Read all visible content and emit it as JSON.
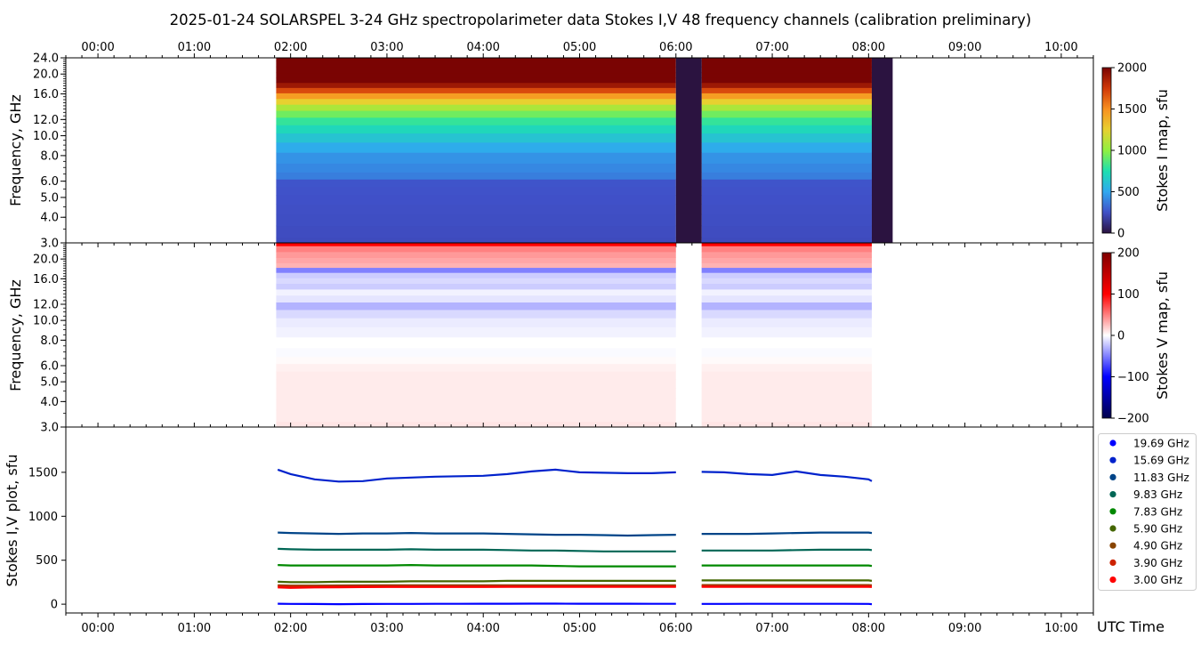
{
  "title": "2025-01-24  SOLARSPEL  3-24 GHz spectropolarimeter data   Stokes I,V   48 frequency channels   (calibration preliminary)",
  "chart_data": [
    {
      "type": "heatmap",
      "ylabel": "Frequency, GHz",
      "yscale": "log",
      "ylim": [
        3.0,
        24.0
      ],
      "ytick_labels": [
        "3.0",
        "4.0",
        "5.0",
        "6.0",
        "8.0",
        "10.0",
        "12.0",
        "16.0",
        "20.0",
        "24.0"
      ],
      "xlim": [
        "-00:20",
        "10:20"
      ],
      "xtick_labels": [
        "00:00",
        "01:00",
        "02:00",
        "03:00",
        "04:00",
        "05:00",
        "06:00",
        "07:00",
        "08:00",
        "09:00",
        "10:00"
      ],
      "colorbar": {
        "label": "Stokes I map, sfu",
        "range": [
          0,
          2000
        ],
        "tick_labels": [
          "0",
          "500",
          "1000",
          "1500",
          "2000"
        ],
        "colormap": [
          "#2b1340",
          "#4050c8",
          "#30a8f0",
          "#1de0b0",
          "#90f040",
          "#e8d030",
          "#f89020",
          "#d03808",
          "#7a0403"
        ]
      },
      "observation_segments": [
        [
          "01:51",
          "06:00"
        ],
        [
          "06:16",
          "08:02"
        ]
      ],
      "zero_signal_segments": [
        [
          "06:00",
          "06:16"
        ],
        [
          "08:02",
          "08:15"
        ]
      ],
      "channels_ghz": [
        3.0,
        3.4,
        3.9,
        4.4,
        4.9,
        5.4,
        5.9,
        6.4,
        6.9,
        7.83,
        8.8,
        9.83,
        10.8,
        11.83,
        12.8,
        13.8,
        14.7,
        15.69,
        16.7,
        17.7,
        18.7,
        19.69,
        21.0,
        22.5,
        24.0
      ],
      "values": [
        230,
        235,
        240,
        245,
        250,
        255,
        260,
        380,
        410,
        440,
        520,
        620,
        710,
        800,
        930,
        1080,
        1250,
        1450,
        1700,
        1900,
        2100,
        2300,
        2400,
        2500,
        2600
      ]
    },
    {
      "type": "heatmap",
      "ylabel": "Frequency, GHz",
      "yscale": "log",
      "ylim": [
        3.0,
        24.0
      ],
      "ytick_labels": [
        "3.0",
        "4.0",
        "5.0",
        "6.0",
        "8.0",
        "10.0",
        "12.0",
        "16.0",
        "20.0"
      ],
      "colorbar": {
        "label": "Stokes V map, sfu",
        "range": [
          -200,
          200
        ],
        "tick_labels": [
          "−200",
          "−100",
          "0",
          "100",
          "200"
        ],
        "colormap": [
          "#00004c",
          "#0000ff",
          "#ffffff",
          "#ff0000",
          "#800000"
        ]
      },
      "observation_segments": [
        [
          "01:51",
          "06:00"
        ],
        [
          "06:16",
          "08:02"
        ]
      ],
      "channels_ghz": [
        3.0,
        3.4,
        3.9,
        4.4,
        4.9,
        5.4,
        5.9,
        6.4,
        6.9,
        7.83,
        8.8,
        9.83,
        10.8,
        11.83,
        12.8,
        13.8,
        14.7,
        15.69,
        16.7,
        17.7,
        18.7,
        19.69,
        21.0,
        22.5,
        24.0
      ],
      "values": [
        10,
        8,
        8,
        8,
        8,
        8,
        6,
        2,
        -2,
        0,
        -5,
        -8,
        -15,
        -30,
        -10,
        -5,
        -20,
        -15,
        -20,
        -50,
        30,
        35,
        40,
        50,
        100
      ]
    },
    {
      "type": "line",
      "ylabel": "Stokes I,V plot, sfu",
      "xlabel": "UTC Time",
      "ylim": [
        -100,
        2015
      ],
      "ytick_labels": [
        "0",
        "500",
        "1000",
        "1500"
      ],
      "legend": "right",
      "x": [
        "01:52",
        "02:00",
        "02:15",
        "02:30",
        "02:45",
        "03:00",
        "03:15",
        "03:30",
        "03:45",
        "04:00",
        "04:15",
        "04:30",
        "04:45",
        "05:00",
        "05:15",
        "05:30",
        "05:45",
        "06:00",
        "06:08",
        "06:16",
        "06:30",
        "06:45",
        "07:00",
        "07:15",
        "07:30",
        "07:45",
        "08:00",
        "08:02"
      ],
      "series": [
        {
          "name": "19.69 GHz",
          "color": "#0000ff",
          "values": [
            5,
            3,
            2,
            0,
            2,
            3,
            3,
            4,
            4,
            5,
            5,
            6,
            6,
            5,
            5,
            5,
            4,
            4,
            null,
            3,
            3,
            4,
            4,
            4,
            4,
            4,
            3,
            0
          ]
        },
        {
          "name": "15.69 GHz",
          "color": "#0022cc",
          "values": [
            1530,
            1480,
            1420,
            1395,
            1400,
            1430,
            1440,
            1450,
            1455,
            1460,
            1480,
            1510,
            1530,
            1500,
            1495,
            1490,
            1490,
            1500,
            null,
            1505,
            1500,
            1480,
            1470,
            1510,
            1470,
            1450,
            1420,
            1400
          ]
        },
        {
          "name": "11.83 GHz",
          "color": "#004488",
          "values": [
            815,
            810,
            805,
            800,
            805,
            805,
            810,
            805,
            805,
            805,
            800,
            795,
            790,
            790,
            785,
            780,
            785,
            790,
            null,
            800,
            800,
            800,
            805,
            810,
            815,
            815,
            815,
            810
          ]
        },
        {
          "name": "9.83 GHz",
          "color": "#006655",
          "values": [
            630,
            625,
            620,
            620,
            620,
            620,
            625,
            620,
            620,
            620,
            615,
            610,
            610,
            605,
            600,
            600,
            600,
            600,
            null,
            610,
            610,
            610,
            610,
            615,
            620,
            620,
            620,
            615
          ]
        },
        {
          "name": "7.83 GHz",
          "color": "#008800",
          "values": [
            445,
            440,
            440,
            440,
            440,
            440,
            445,
            440,
            440,
            440,
            440,
            440,
            435,
            430,
            430,
            430,
            430,
            430,
            null,
            440,
            440,
            440,
            440,
            440,
            440,
            440,
            440,
            435
          ]
        },
        {
          "name": "5.90 GHz",
          "color": "#446600",
          "values": [
            255,
            250,
            250,
            255,
            255,
            255,
            260,
            260,
            260,
            260,
            265,
            265,
            265,
            265,
            265,
            265,
            265,
            265,
            null,
            270,
            270,
            270,
            270,
            270,
            270,
            270,
            270,
            265
          ]
        },
        {
          "name": "4.90 GHz",
          "color": "#884400",
          "values": [
            215,
            212,
            212,
            213,
            214,
            215,
            215,
            215,
            215,
            215,
            216,
            216,
            216,
            216,
            216,
            216,
            216,
            216,
            null,
            218,
            218,
            218,
            218,
            218,
            218,
            218,
            218,
            215
          ]
        },
        {
          "name": "3.90 GHz",
          "color": "#cc2200",
          "values": [
            205,
            202,
            202,
            203,
            204,
            205,
            205,
            205,
            205,
            205,
            206,
            206,
            206,
            206,
            206,
            206,
            206,
            206,
            null,
            208,
            208,
            208,
            208,
            208,
            208,
            208,
            208,
            205
          ]
        },
        {
          "name": "3.00 GHz",
          "color": "#ff0000",
          "values": [
            190,
            185,
            190,
            192,
            194,
            195,
            195,
            195,
            195,
            195,
            196,
            196,
            196,
            196,
            196,
            196,
            196,
            196,
            null,
            198,
            198,
            198,
            198,
            198,
            198,
            198,
            198,
            195
          ]
        }
      ]
    }
  ]
}
